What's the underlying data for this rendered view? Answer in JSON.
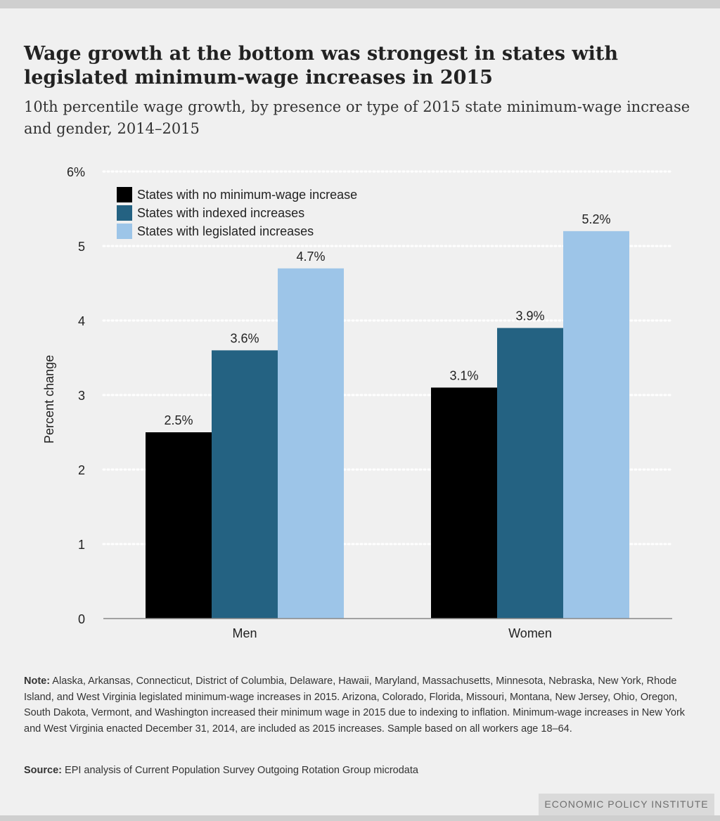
{
  "chart_data": {
    "type": "bar",
    "title": "Wage growth at the bottom was strongest in states with legislated minimum-wage increases in 2015",
    "subtitle": "10th percentile wage growth, by presence or type of 2015 state minimum-wage increase and gender, 2014–2015",
    "ylabel": "Percent change",
    "xlabel": "",
    "ylim": [
      0,
      6
    ],
    "yticks": [
      0,
      1,
      2,
      3,
      4,
      5,
      6
    ],
    "ytick_labels": [
      "0",
      "1",
      "2",
      "3",
      "4",
      "5",
      "6%"
    ],
    "grid": true,
    "legend_position": "top-left",
    "categories": [
      "Men",
      "Women"
    ],
    "series": [
      {
        "name": "States with no minimum-wage increase",
        "values": [
          2.5,
          3.1
        ],
        "labels": [
          "2.5%",
          "3.1%"
        ],
        "color": "#000000"
      },
      {
        "name": "States with indexed increases",
        "values": [
          3.6,
          3.9
        ],
        "labels": [
          "3.6%",
          "3.9%"
        ],
        "color": "#246282"
      },
      {
        "name": "States with legislated increases",
        "values": [
          4.7,
          5.2
        ],
        "labels": [
          "4.7%",
          "5.2%"
        ],
        "color": "#9dc5e8"
      }
    ]
  },
  "note": {
    "label": "Note:",
    "text": "Alaska, Arkansas, Connecticut, District of Columbia, Delaware, Hawaii, Maryland, Massachusetts, Minnesota, Nebraska, New York, Rhode Island, and West Virginia legislated minimum-wage increases in 2015. Arizona, Colorado, Florida, Missouri, Montana, New Jersey, Ohio, Oregon, South Dakota, Vermont, and Washington increased their minimum wage in 2015 due to indexing to inflation. Minimum-wage increases in New York and West Virginia enacted December 31, 2014, are included as 2015 increases. Sample based on all workers age 18–64."
  },
  "source": {
    "label": "Source:",
    "text": "EPI analysis of Current Population Survey Outgoing Rotation Group microdata"
  },
  "brand": "ECONOMIC POLICY INSTITUTE"
}
